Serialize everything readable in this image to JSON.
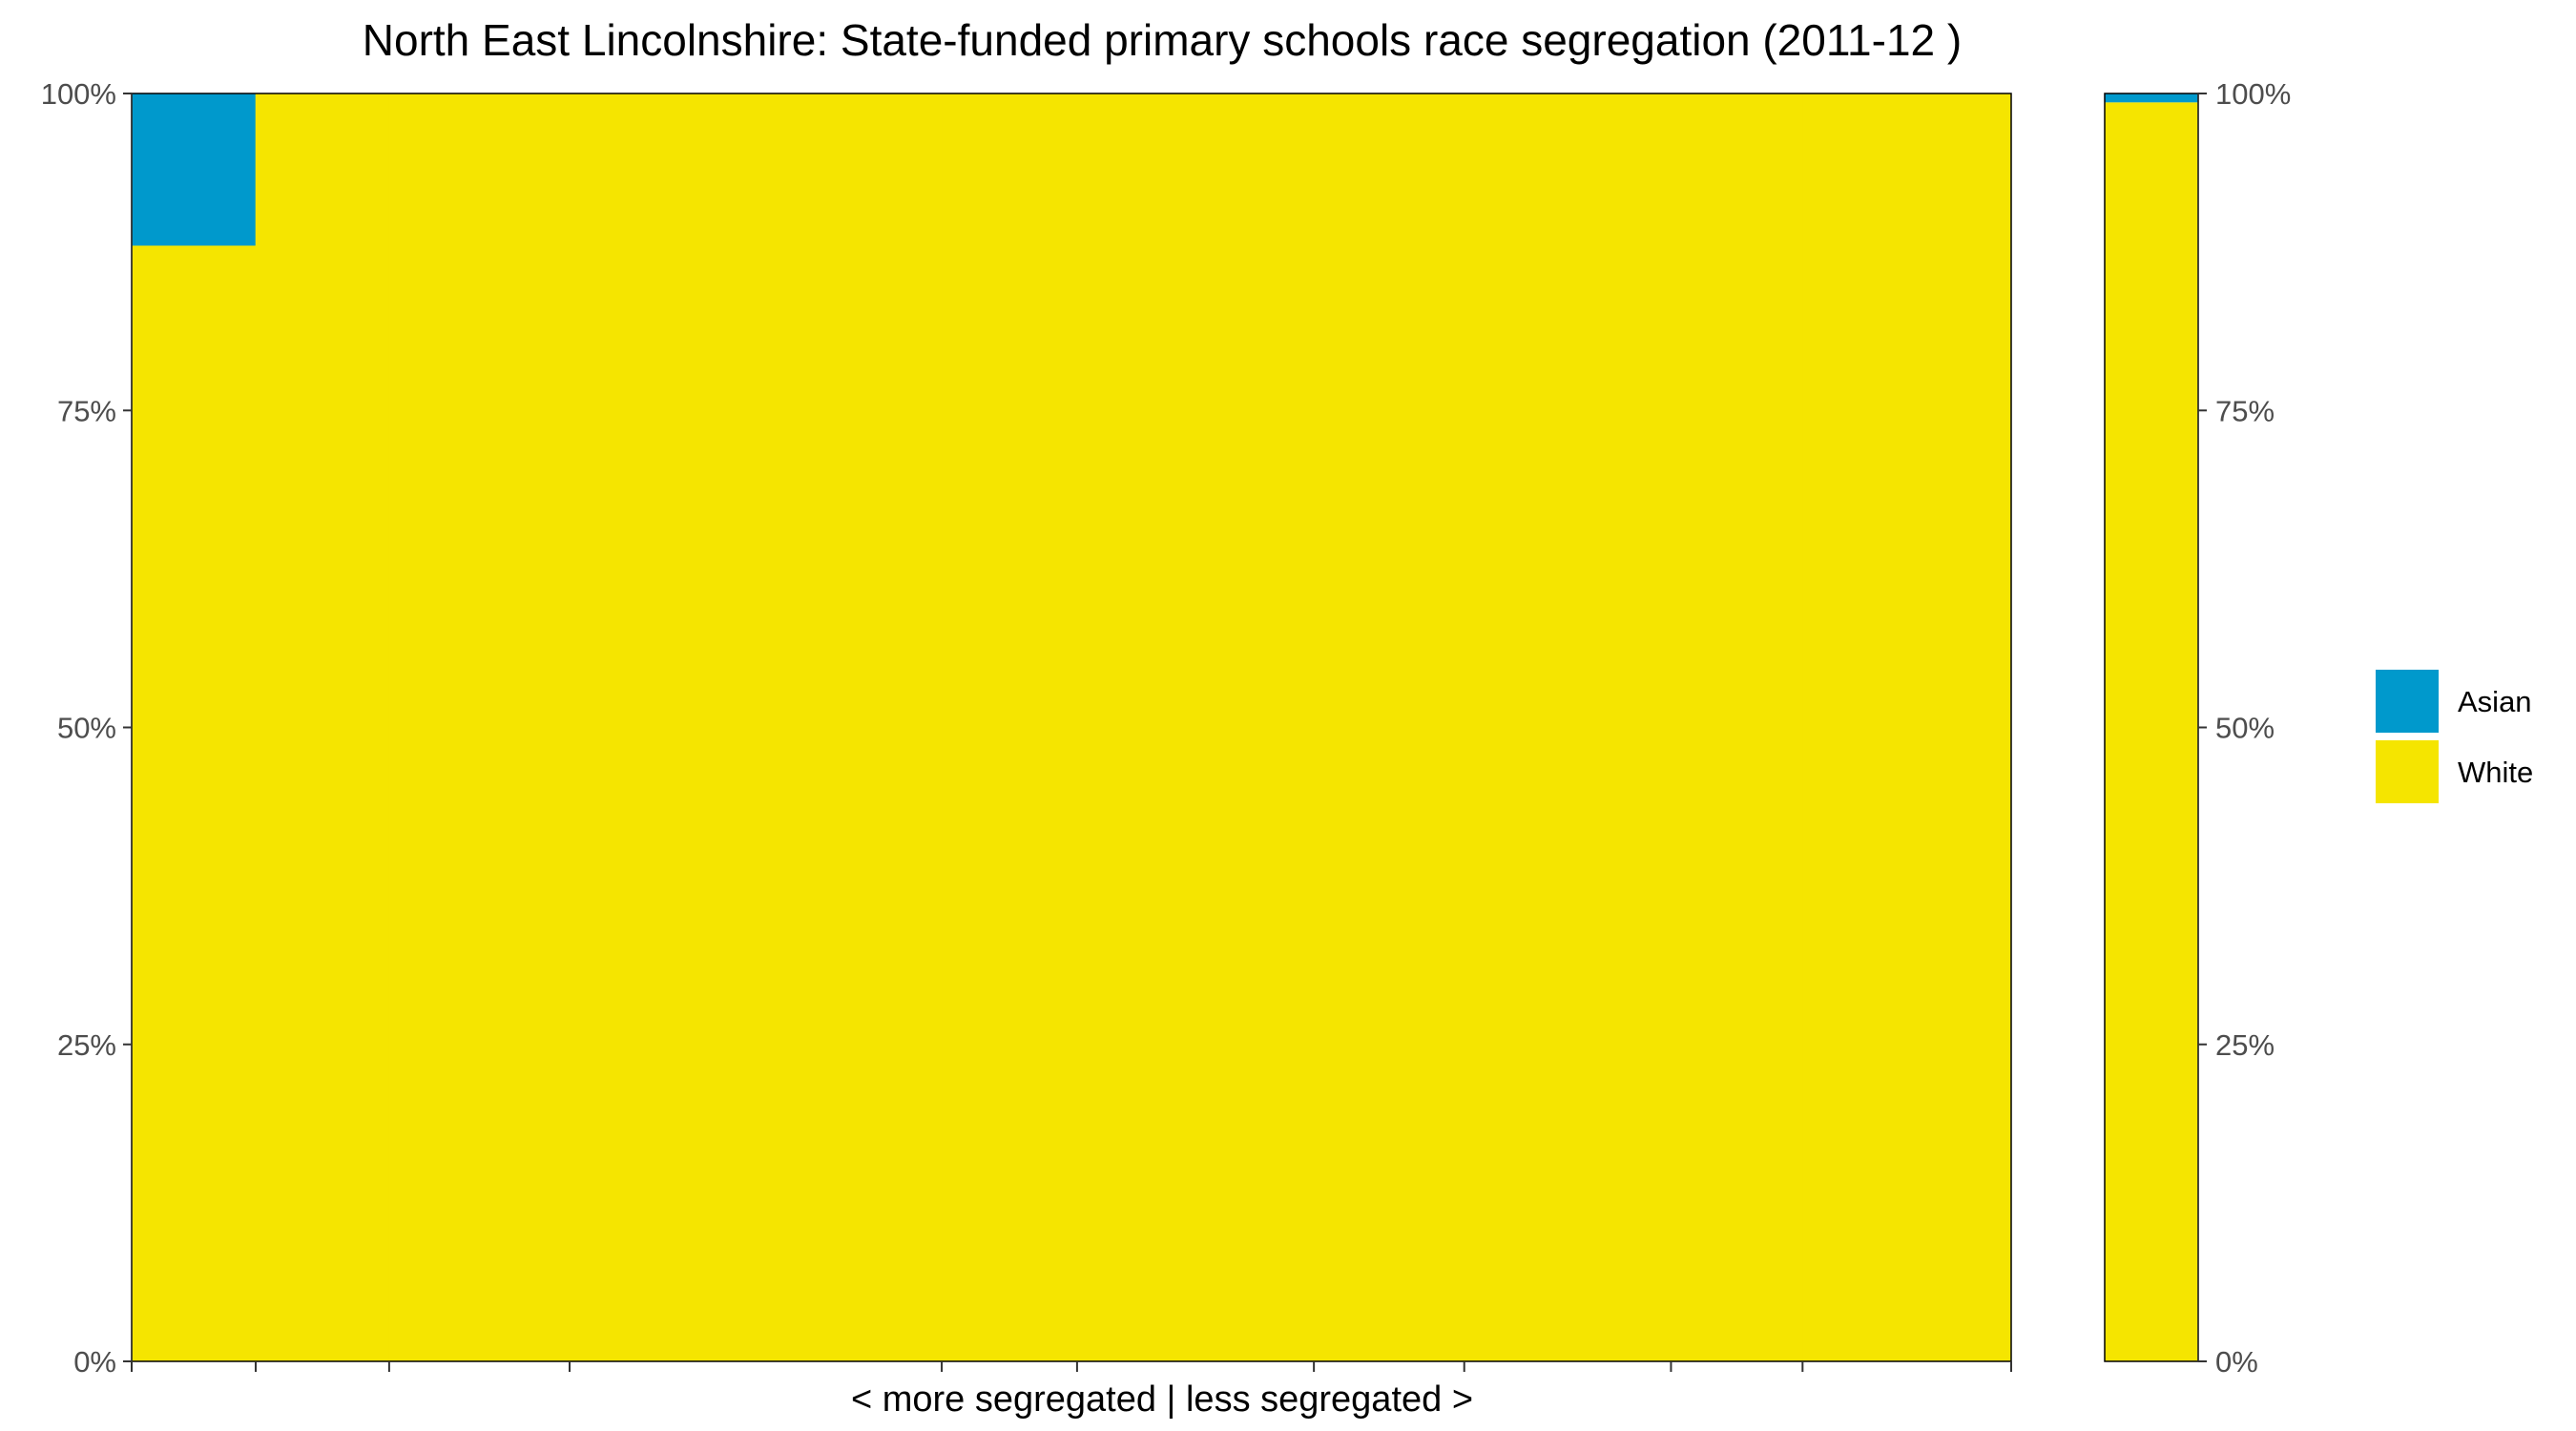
{
  "chart_data": {
    "type": "bar",
    "stacked": true,
    "normalized_percent": true,
    "title": "North East Lincolnshire: State-funded primary schools race segregation (2011-12 )",
    "xlabel": "< more segregated | less segregated >",
    "ylabel": "",
    "ylim": [
      0,
      1
    ],
    "y_ticks": [
      {
        "value": 0,
        "label": "0%"
      },
      {
        "value": 0.25,
        "label": "25%"
      },
      {
        "value": 0.5,
        "label": "50%"
      },
      {
        "value": 0.75,
        "label": "75%"
      },
      {
        "value": 1,
        "label": "100%"
      }
    ],
    "secondary_y_axis": true,
    "grid": false,
    "legend_position": "right",
    "colors": {
      "Asian": "#0099cc",
      "White": "#f5e500"
    },
    "main_panel": {
      "x_domain": [
        0,
        1
      ],
      "x_ticks": [
        0,
        0.066,
        0.137,
        0.233,
        0.431,
        0.503,
        0.629,
        0.709,
        0.819,
        0.889,
        1.0
      ],
      "bars": [
        {
          "x0": 0.0,
          "x1": 0.066,
          "Asian": 0.12,
          "White": 0.88
        },
        {
          "x0": 0.066,
          "x1": 0.137,
          "Asian": 0.0,
          "White": 1.0
        },
        {
          "x0": 0.137,
          "x1": 0.233,
          "Asian": 0.0,
          "White": 1.0
        },
        {
          "x0": 0.233,
          "x1": 0.431,
          "Asian": 0.0,
          "White": 1.0
        },
        {
          "x0": 0.431,
          "x1": 0.503,
          "Asian": 0.0,
          "White": 1.0
        },
        {
          "x0": 0.503,
          "x1": 0.535,
          "Asian": 0.0,
          "White": 1.0
        },
        {
          "x0": 0.535,
          "x1": 0.629,
          "Asian": 0.0,
          "White": 1.0
        },
        {
          "x0": 0.629,
          "x1": 0.709,
          "Asian": 0.0,
          "White": 1.0
        },
        {
          "x0": 0.709,
          "x1": 0.819,
          "Asian": 0.0,
          "White": 1.0
        },
        {
          "x0": 0.819,
          "x1": 0.889,
          "Asian": 0.0,
          "White": 1.0
        },
        {
          "x0": 0.889,
          "x1": 1.0,
          "Asian": 0.0,
          "White": 1.0
        }
      ]
    },
    "summary_bar": {
      "Asian": 0.007,
      "White": 0.993
    },
    "legend": [
      {
        "name": "Asian",
        "color": "#0099cc"
      },
      {
        "name": "White",
        "color": "#f5e500"
      }
    ]
  }
}
